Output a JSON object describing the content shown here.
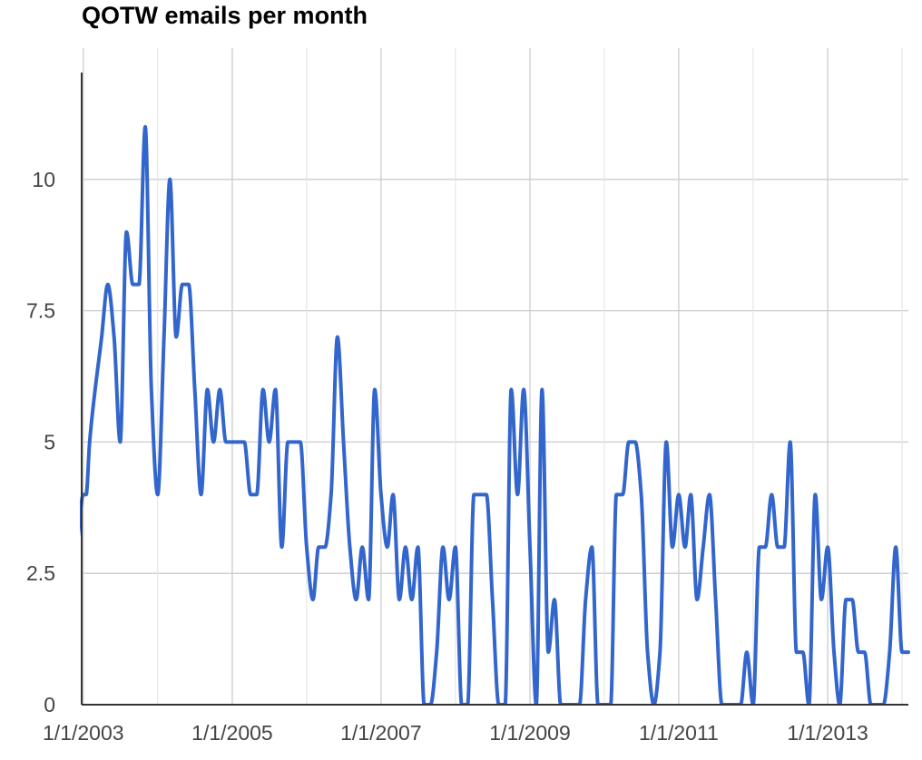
{
  "chart_data": {
    "type": "line",
    "title": "QOTW emails per month",
    "xlabel": "",
    "ylabel": "",
    "x_axis": {
      "type": "date",
      "range": [
        "2002-12-24",
        "2014-02-01"
      ],
      "ticks": [
        {
          "value": "2003-01-01",
          "label": "1/1/2003"
        },
        {
          "value": "2005-01-01",
          "label": "1/1/2005"
        },
        {
          "value": "2007-01-01",
          "label": "1/1/2007"
        },
        {
          "value": "2009-01-01",
          "label": "1/1/2009"
        },
        {
          "value": "2011-01-01",
          "label": "1/1/2011"
        },
        {
          "value": "2013-01-01",
          "label": "1/1/2013"
        }
      ],
      "minor_gridlines": true
    },
    "y_axis": {
      "range": [
        0,
        12.5
      ],
      "ticks": [
        {
          "value": 0,
          "label": "0"
        },
        {
          "value": 2.5,
          "label": "2.5"
        },
        {
          "value": 5,
          "label": "5"
        },
        {
          "value": 7.5,
          "label": "7.5"
        },
        {
          "value": 10,
          "label": "10"
        }
      ]
    },
    "grid": true,
    "legend": "none",
    "colors": {
      "line": "#3366cc",
      "grid": "#cccccc",
      "axis": "#333333"
    },
    "series": [
      {
        "values": [
          [
            "2002-12-01",
            3
          ],
          [
            "2003-01-01",
            4
          ],
          [
            "2003-01-15",
            4
          ],
          [
            "2003-02-01",
            5
          ],
          [
            "2003-04-01",
            7
          ],
          [
            "2003-05-01",
            8
          ],
          [
            "2003-06-01",
            7
          ],
          [
            "2003-07-01",
            5
          ],
          [
            "2003-08-01",
            9
          ],
          [
            "2003-09-01",
            8
          ],
          [
            "2003-10-01",
            8
          ],
          [
            "2003-11-01",
            11
          ],
          [
            "2003-12-01",
            6
          ],
          [
            "2004-01-01",
            4
          ],
          [
            "2004-02-01",
            7
          ],
          [
            "2004-03-01",
            10
          ],
          [
            "2004-04-01",
            7
          ],
          [
            "2004-05-01",
            8
          ],
          [
            "2004-06-01",
            8
          ],
          [
            "2004-07-01",
            6
          ],
          [
            "2004-08-01",
            4
          ],
          [
            "2004-09-01",
            6
          ],
          [
            "2004-10-01",
            5
          ],
          [
            "2004-11-01",
            6
          ],
          [
            "2004-12-01",
            5
          ],
          [
            "2005-01-01",
            5
          ],
          [
            "2005-02-01",
            5
          ],
          [
            "2005-03-01",
            5
          ],
          [
            "2005-04-01",
            4
          ],
          [
            "2005-05-01",
            4
          ],
          [
            "2005-06-01",
            6
          ],
          [
            "2005-07-01",
            5
          ],
          [
            "2005-08-01",
            6
          ],
          [
            "2005-09-01",
            3
          ],
          [
            "2005-10-01",
            5
          ],
          [
            "2005-11-01",
            5
          ],
          [
            "2005-12-01",
            5
          ],
          [
            "2006-01-01",
            3
          ],
          [
            "2006-02-01",
            2
          ],
          [
            "2006-03-01",
            3
          ],
          [
            "2006-04-01",
            3
          ],
          [
            "2006-05-01",
            4
          ],
          [
            "2006-06-01",
            7
          ],
          [
            "2006-07-01",
            5
          ],
          [
            "2006-08-01",
            3
          ],
          [
            "2006-09-01",
            2
          ],
          [
            "2006-10-01",
            3
          ],
          [
            "2006-11-01",
            2
          ],
          [
            "2006-12-01",
            6
          ],
          [
            "2007-01-01",
            4
          ],
          [
            "2007-02-01",
            3
          ],
          [
            "2007-03-01",
            4
          ],
          [
            "2007-04-01",
            2
          ],
          [
            "2007-05-01",
            3
          ],
          [
            "2007-06-01",
            2
          ],
          [
            "2007-07-01",
            3
          ],
          [
            "2007-08-01",
            0
          ],
          [
            "2007-09-01",
            0
          ],
          [
            "2007-10-01",
            1
          ],
          [
            "2007-11-01",
            3
          ],
          [
            "2007-12-01",
            2
          ],
          [
            "2008-01-01",
            3
          ],
          [
            "2008-02-01",
            0
          ],
          [
            "2008-03-01",
            0
          ],
          [
            "2008-04-01",
            4
          ],
          [
            "2008-05-01",
            4
          ],
          [
            "2008-06-01",
            4
          ],
          [
            "2008-07-01",
            2
          ],
          [
            "2008-08-01",
            0
          ],
          [
            "2008-09-01",
            0
          ],
          [
            "2008-10-01",
            6
          ],
          [
            "2008-11-01",
            4
          ],
          [
            "2008-12-01",
            6
          ],
          [
            "2009-01-01",
            3
          ],
          [
            "2009-02-01",
            0
          ],
          [
            "2009-03-01",
            6
          ],
          [
            "2009-04-01",
            1
          ],
          [
            "2009-05-01",
            2
          ],
          [
            "2009-06-01",
            0
          ],
          [
            "2009-07-01",
            0
          ],
          [
            "2009-08-01",
            0
          ],
          [
            "2009-09-01",
            0
          ],
          [
            "2009-10-01",
            2
          ],
          [
            "2009-11-01",
            3
          ],
          [
            "2009-12-01",
            0
          ],
          [
            "2010-01-01",
            0
          ],
          [
            "2010-02-01",
            0
          ],
          [
            "2010-03-01",
            4
          ],
          [
            "2010-04-01",
            4
          ],
          [
            "2010-05-01",
            5
          ],
          [
            "2010-06-01",
            5
          ],
          [
            "2010-07-01",
            4
          ],
          [
            "2010-08-01",
            1
          ],
          [
            "2010-09-01",
            0
          ],
          [
            "2010-10-01",
            1
          ],
          [
            "2010-11-01",
            5
          ],
          [
            "2010-12-01",
            3
          ],
          [
            "2011-01-01",
            4
          ],
          [
            "2011-02-01",
            3
          ],
          [
            "2011-03-01",
            4
          ],
          [
            "2011-04-01",
            2
          ],
          [
            "2011-05-01",
            3
          ],
          [
            "2011-06-01",
            4
          ],
          [
            "2011-07-01",
            2
          ],
          [
            "2011-08-01",
            0
          ],
          [
            "2011-09-01",
            0
          ],
          [
            "2011-10-01",
            0
          ],
          [
            "2011-11-01",
            0
          ],
          [
            "2011-12-01",
            1
          ],
          [
            "2012-01-01",
            0
          ],
          [
            "2012-02-01",
            3
          ],
          [
            "2012-03-01",
            3
          ],
          [
            "2012-04-01",
            4
          ],
          [
            "2012-05-01",
            3
          ],
          [
            "2012-06-01",
            3
          ],
          [
            "2012-07-01",
            5
          ],
          [
            "2012-08-01",
            1
          ],
          [
            "2012-09-01",
            1
          ],
          [
            "2012-10-01",
            0
          ],
          [
            "2012-11-01",
            4
          ],
          [
            "2012-12-01",
            2
          ],
          [
            "2013-01-01",
            3
          ],
          [
            "2013-02-01",
            1
          ],
          [
            "2013-03-01",
            0
          ],
          [
            "2013-04-01",
            2
          ],
          [
            "2013-05-01",
            2
          ],
          [
            "2013-06-01",
            1
          ],
          [
            "2013-07-01",
            1
          ],
          [
            "2013-08-01",
            0
          ],
          [
            "2013-09-01",
            0
          ],
          [
            "2013-10-01",
            0
          ],
          [
            "2013-11-01",
            1
          ],
          [
            "2013-12-01",
            3
          ],
          [
            "2014-01-01",
            1
          ],
          [
            "2014-02-01",
            1
          ]
        ]
      }
    ]
  }
}
